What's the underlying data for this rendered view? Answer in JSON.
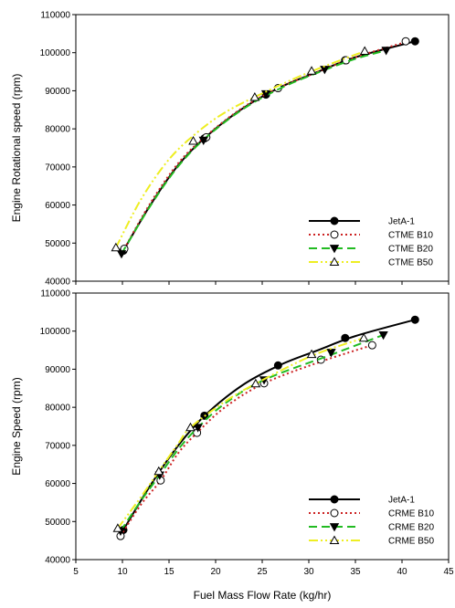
{
  "xlabel": "Fuel Mass Flow Rate (kg/hr)",
  "chart_data": [
    {
      "type": "line",
      "title": "",
      "xlabel": "Fuel Mass Flow Rate (kg/hr)",
      "ylabel": "Engine Rotational speed (rpm)",
      "xlim": [
        5,
        45
      ],
      "ylim": [
        40000,
        110000
      ],
      "x_ticks": [
        "5",
        "10",
        "15",
        "20",
        "25",
        "30",
        "35",
        "40",
        "45"
      ],
      "y_ticks": [
        "40000",
        "50000",
        "60000",
        "70000",
        "80000",
        "90000",
        "100000",
        "110000"
      ],
      "legend_position": "bottom-right",
      "grid": false,
      "series": [
        {
          "name": "JetA-1",
          "color": "#000000",
          "dash": "solid",
          "marker": "filled-circle",
          "x": [
            10.1,
            18.8,
            25.4,
            33.9,
            41.4
          ],
          "y": [
            48000,
            77500,
            89000,
            98000,
            103000
          ],
          "curve_x": [
            10.1,
            13.0,
            16.0,
            19.0,
            23.0,
            27.0,
            31.0,
            35.0,
            41.4
          ],
          "curve_y": [
            48000,
            60000,
            70500,
            78000,
            85500,
            91000,
            95000,
            98800,
            103000
          ]
        },
        {
          "name": "CTME B10",
          "color": "#cc2222",
          "dash": "dotted",
          "marker": "open-circle",
          "x": [
            10.2,
            19.0,
            26.7,
            34.0,
            40.4
          ],
          "y": [
            48500,
            77800,
            90700,
            98000,
            103000
          ],
          "curve_x": [
            10.2,
            13.0,
            16.0,
            19.0,
            23.0,
            27.0,
            31.0,
            35.0,
            40.4
          ],
          "curve_y": [
            48500,
            60500,
            71000,
            78200,
            85700,
            91000,
            95000,
            98800,
            102800
          ]
        },
        {
          "name": "CTME B20",
          "color": "#22bb22",
          "dash": "dashed",
          "marker": "filled-triangle-down",
          "x": [
            9.9,
            18.7,
            25.4,
            31.7,
            38.3
          ],
          "y": [
            47200,
            77000,
            89200,
            95600,
            100600
          ],
          "curve_x": [
            9.9,
            13.0,
            16.0,
            19.0,
            23.0,
            27.0,
            31.0,
            35.0,
            38.3
          ],
          "curve_y": [
            47200,
            59800,
            70200,
            77800,
            85300,
            90700,
            94800,
            98400,
            100600
          ]
        },
        {
          "name": "CTME B50",
          "color": "#eeee22",
          "dash": "dash-dot-dot",
          "marker": "open-triangle-up",
          "x": [
            9.3,
            17.6,
            24.2,
            30.3,
            36.0
          ],
          "y": [
            48800,
            76800,
            88300,
            95200,
            100400
          ],
          "curve_x": [
            9.3,
            12.0,
            15.0,
            18.0,
            21.0,
            25.0,
            30.0,
            36.0
          ],
          "curve_y": [
            48800,
            61500,
            72000,
            79000,
            84300,
            89300,
            94800,
            100400
          ]
        }
      ]
    },
    {
      "type": "line",
      "title": "",
      "xlabel": "Fuel Mass Flow Rate (kg/hr)",
      "ylabel": "Engine Speed (rpm)",
      "xlim": [
        5,
        45
      ],
      "ylim": [
        40000,
        110000
      ],
      "x_ticks": [
        "5",
        "10",
        "15",
        "20",
        "25",
        "30",
        "35",
        "40",
        "45"
      ],
      "y_ticks": [
        "40000",
        "50000",
        "60000",
        "70000",
        "80000",
        "90000",
        "100000",
        "110000"
      ],
      "legend_position": "bottom-right",
      "grid": false,
      "series": [
        {
          "name": "JetA-1",
          "color": "#000000",
          "dash": "solid",
          "marker": "filled-circle",
          "x": [
            10.1,
            18.8,
            26.7,
            33.9,
            41.4
          ],
          "y": [
            47800,
            77800,
            91000,
            98200,
            103000
          ],
          "curve_x": [
            10.1,
            13.0,
            16.0,
            19.0,
            23.0,
            27.0,
            31.0,
            35.0,
            41.4
          ],
          "curve_y": [
            47800,
            59500,
            70000,
            78200,
            86000,
            91200,
            95000,
            98700,
            103000
          ]
        },
        {
          "name": "CRME B10",
          "color": "#cc2222",
          "dash": "dotted",
          "marker": "open-circle",
          "x": [
            9.8,
            14.1,
            18.0,
            25.2,
            31.3,
            36.8
          ],
          "y": [
            46200,
            60800,
            73300,
            86300,
            92500,
            96300
          ],
          "curve_x": [
            9.8,
            12.0,
            14.1,
            16.0,
            18.0,
            21.0,
            25.2,
            31.3,
            36.8
          ],
          "curve_y": [
            46200,
            54500,
            60800,
            68000,
            73300,
            80000,
            86300,
            92000,
            96300
          ]
        },
        {
          "name": "CRME B20",
          "color": "#22bb22",
          "dash": "dashed",
          "marker": "filled-triangle-down",
          "x": [
            9.8,
            14.0,
            18.1,
            25.2,
            32.4,
            38.0
          ],
          "y": [
            47500,
            62200,
            74700,
            87200,
            94400,
            99000
          ],
          "curve_x": [
            9.8,
            12.0,
            14.0,
            16.0,
            18.1,
            21.0,
            25.2,
            32.4,
            38.0
          ],
          "curve_y": [
            47500,
            55500,
            62200,
            69000,
            74700,
            81000,
            87200,
            93800,
            99000
          ]
        },
        {
          "name": "CRME B50",
          "color": "#eeee22",
          "dash": "dash-dot-dot",
          "marker": "open-triangle-up",
          "x": [
            9.5,
            13.9,
            17.3,
            24.3,
            30.3,
            35.9
          ],
          "y": [
            48200,
            63200,
            74700,
            86200,
            93900,
            98200
          ],
          "curve_x": [
            9.5,
            12.0,
            13.9,
            16.0,
            17.3,
            21.0,
            24.3,
            30.3,
            35.9
          ],
          "curve_y": [
            48200,
            56500,
            63200,
            70500,
            74700,
            81500,
            86200,
            93500,
            98200
          ]
        }
      ]
    }
  ]
}
